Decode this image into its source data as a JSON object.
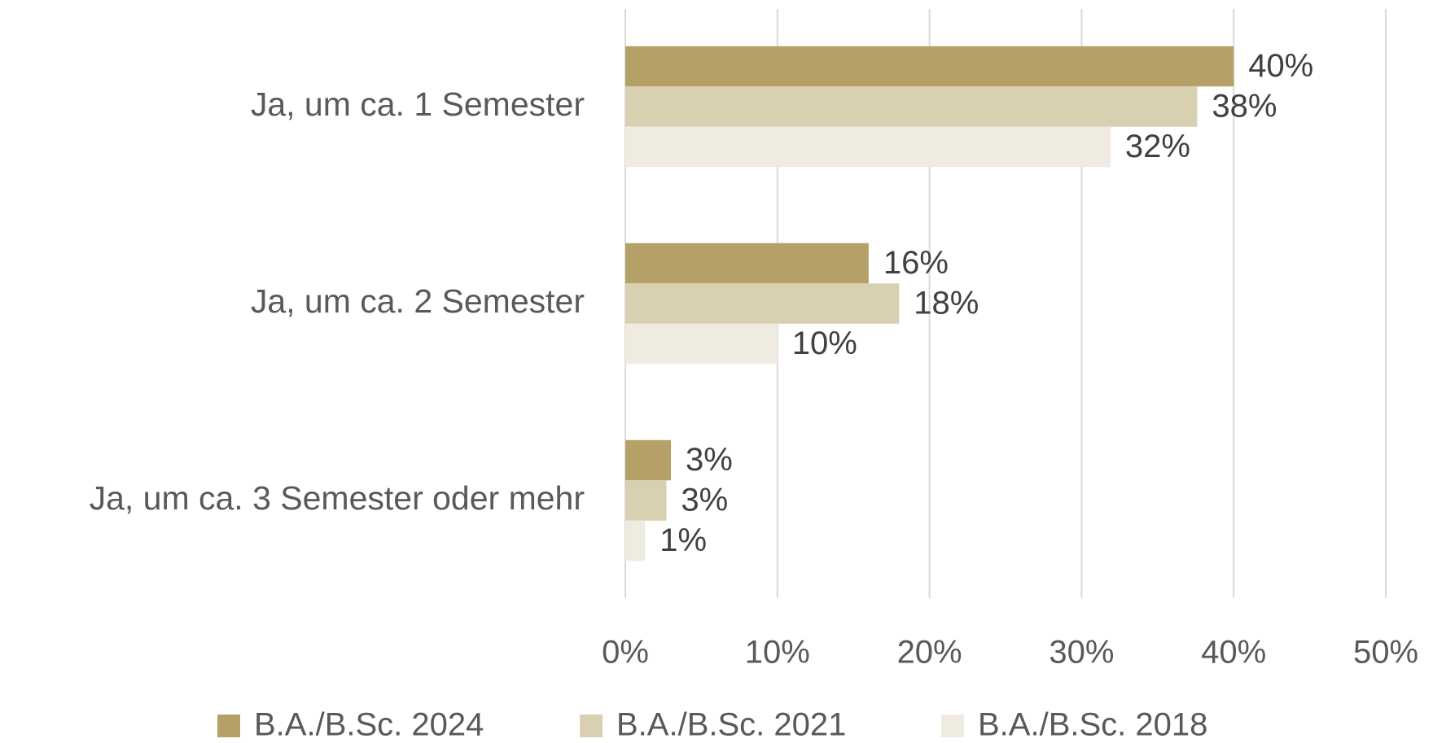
{
  "chart_data": {
    "type": "bar",
    "orientation": "horizontal",
    "categories": [
      "Ja, um ca. 1 Semester",
      "Ja, um ca. 2 Semester",
      "Ja, um ca. 3 Semester oder mehr"
    ],
    "series": [
      {
        "name": "B.A./B.Sc. 2024",
        "color": "#b5a167",
        "values": [
          40,
          16,
          3
        ],
        "value_labels": [
          "40%",
          "16%",
          "3%"
        ]
      },
      {
        "name": "B.A./B.Sc. 2021",
        "color": "#d9cfb1",
        "values": [
          37.6,
          18,
          2.7
        ],
        "value_labels": [
          "38%",
          "18%",
          "3%"
        ]
      },
      {
        "name": "B.A./B.Sc. 2018",
        "color": "#f0ebe1",
        "values": [
          31.9,
          10,
          1.3
        ],
        "value_labels": [
          "32%",
          "10%",
          "1%"
        ]
      }
    ],
    "xlim": [
      0,
      50
    ],
    "xticks": [
      {
        "value": 0,
        "label": "0%"
      },
      {
        "value": 10,
        "label": "10%"
      },
      {
        "value": 20,
        "label": "20%"
      },
      {
        "value": 30,
        "label": "30%"
      },
      {
        "value": 40,
        "label": "40%"
      },
      {
        "value": 50,
        "label": "50%"
      }
    ],
    "grid": true,
    "legend": "bottom"
  }
}
